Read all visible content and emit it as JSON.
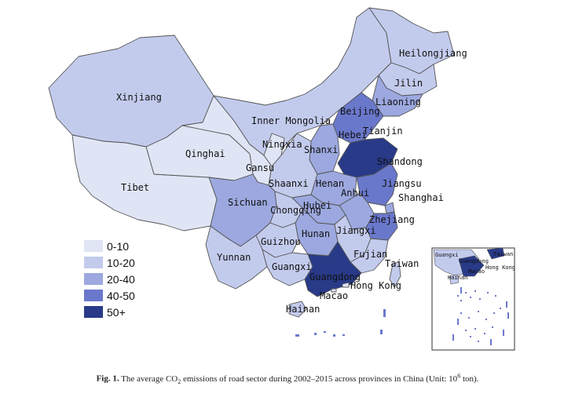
{
  "colors": {
    "bin_0_10": "#e0e5f5",
    "bin_10_20": "#c3cbed",
    "bin_20_40": "#9ca8df",
    "bin_40_50": "#6a78cc",
    "bin_50_plus": "#283a88",
    "border": "#555555",
    "water": "#ffffff"
  },
  "legend": [
    {
      "label": "0-10",
      "bin": "bin_0_10"
    },
    {
      "label": "10-20",
      "bin": "bin_10_20"
    },
    {
      "label": "20-40",
      "bin": "bin_20_40"
    },
    {
      "label": "40-50",
      "bin": "bin_40_50"
    },
    {
      "label": "50+",
      "bin": "bin_50_plus"
    }
  ],
  "provinces": [
    {
      "name": "Xinjiang",
      "bin": "bin_10_20"
    },
    {
      "name": "Tibet",
      "bin": "bin_0_10"
    },
    {
      "name": "Qinghai",
      "bin": "bin_0_10"
    },
    {
      "name": "Gansu",
      "bin": "bin_0_10"
    },
    {
      "name": "Inner Mongolia",
      "bin": "bin_10_20"
    },
    {
      "name": "Heilongjiang",
      "bin": "bin_10_20"
    },
    {
      "name": "Jilin",
      "bin": "bin_10_20"
    },
    {
      "name": "Liaoning",
      "bin": "bin_20_40"
    },
    {
      "name": "Beijing",
      "bin": "bin_20_40"
    },
    {
      "name": "Tianjin",
      "bin": "bin_10_20"
    },
    {
      "name": "Hebei",
      "bin": "bin_40_50"
    },
    {
      "name": "Ningxia",
      "bin": "bin_0_10"
    },
    {
      "name": "Shanxi",
      "bin": "bin_20_40"
    },
    {
      "name": "Shandong",
      "bin": "bin_50_plus"
    },
    {
      "name": "Shaanxi",
      "bin": "bin_10_20"
    },
    {
      "name": "Henan",
      "bin": "bin_20_40"
    },
    {
      "name": "Jiangsu",
      "bin": "bin_40_50"
    },
    {
      "name": "Anhui",
      "bin": "bin_20_40"
    },
    {
      "name": "Shanghai",
      "bin": "bin_20_40"
    },
    {
      "name": "Sichuan",
      "bin": "bin_20_40"
    },
    {
      "name": "Chongqing",
      "bin": "bin_10_20"
    },
    {
      "name": "Hubei",
      "bin": "bin_20_40"
    },
    {
      "name": "Zhejiang",
      "bin": "bin_40_50"
    },
    {
      "name": "Hunan",
      "bin": "bin_20_40"
    },
    {
      "name": "Jiangxi",
      "bin": "bin_10_20"
    },
    {
      "name": "Guizhou",
      "bin": "bin_10_20"
    },
    {
      "name": "Yunnan",
      "bin": "bin_10_20"
    },
    {
      "name": "Fujian",
      "bin": "bin_10_20"
    },
    {
      "name": "Guangxi",
      "bin": "bin_10_20"
    },
    {
      "name": "Guangdong",
      "bin": "bin_50_plus"
    },
    {
      "name": "Taiwan",
      "bin": "bin_10_20"
    },
    {
      "name": "Hong Kong",
      "bin": "bin_0_10"
    },
    {
      "name": "Macao",
      "bin": "bin_0_10"
    },
    {
      "name": "Hainan",
      "bin": "bin_10_20"
    }
  ],
  "inset": {
    "labels": [
      "Guangxi",
      "Guangdong",
      "Taiwan",
      "Hong Kong",
      "Macao",
      "Hainan"
    ]
  },
  "caption": {
    "prefix": "Fig. 1.",
    "text_before_sub": "The average CO",
    "subscript": "2",
    "text_middle": " emissions of road sector during 2002–2015 across provinces in China (Unit: 10",
    "superscript": "6",
    "text_after": " ton)."
  }
}
